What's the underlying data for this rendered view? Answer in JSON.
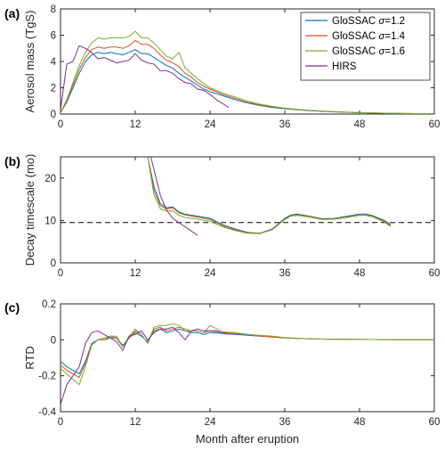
{
  "colors": {
    "axis": "#262626",
    "grid": "none",
    "series": [
      "#0072BD",
      "#D95319",
      "#77AC30",
      "#7E2F8E"
    ],
    "reference_line": "#000000"
  },
  "chart_data": [
    {
      "type": "line",
      "panel_label": "(a)",
      "title": "",
      "xlabel": "",
      "ylabel": "Aerosol mass (TgS)",
      "xlim": [
        0,
        60
      ],
      "ylim": [
        0,
        8
      ],
      "xticks": [
        0,
        12,
        24,
        36,
        48,
        60
      ],
      "yticks": [
        0,
        2,
        4,
        6,
        8
      ],
      "grid": false,
      "legend": {
        "placement": "top-right",
        "entries": [
          {
            "prefix": "GloSSAC ",
            "symbol": "σ",
            "suffix": "=1.2"
          },
          {
            "prefix": "GloSSAC ",
            "symbol": "σ",
            "suffix": "=1.4"
          },
          {
            "prefix": "GloSSAC ",
            "symbol": "σ",
            "suffix": "=1.6"
          },
          {
            "prefix": "HIRS",
            "symbol": "",
            "suffix": ""
          }
        ]
      },
      "series": [
        {
          "name": "GloSSAC σ=1.2",
          "x": [
            0,
            1,
            2,
            3,
            4,
            5,
            6,
            7,
            8,
            9,
            10,
            11,
            12,
            13,
            14,
            15,
            16,
            17,
            18,
            19,
            20,
            21,
            22,
            23,
            24,
            26,
            28,
            30,
            32,
            34,
            36,
            40,
            44,
            48,
            52,
            56,
            60
          ],
          "y": [
            0.1,
            0.9,
            2.0,
            3.1,
            4.0,
            4.5,
            4.7,
            4.6,
            4.7,
            4.6,
            4.5,
            4.7,
            4.9,
            4.6,
            4.6,
            4.3,
            4.0,
            3.7,
            3.5,
            3.1,
            2.8,
            2.5,
            2.2,
            1.9,
            1.7,
            1.4,
            1.1,
            0.85,
            0.65,
            0.5,
            0.4,
            0.25,
            0.16,
            0.1,
            0.06,
            0.03,
            0.02
          ]
        },
        {
          "name": "GloSSAC σ=1.4",
          "x": [
            0,
            1,
            2,
            3,
            4,
            5,
            6,
            7,
            8,
            9,
            10,
            11,
            12,
            13,
            14,
            15,
            16,
            17,
            18,
            19,
            20,
            21,
            22,
            23,
            24,
            26,
            28,
            30,
            32,
            34,
            36,
            40,
            44,
            48,
            52,
            56,
            60
          ],
          "y": [
            0.1,
            1.0,
            2.2,
            3.4,
            4.3,
            4.9,
            5.1,
            5.0,
            5.1,
            5.1,
            5.0,
            5.2,
            5.6,
            5.3,
            5.3,
            5.0,
            4.5,
            4.1,
            3.9,
            3.6,
            3.1,
            2.8,
            2.4,
            2.1,
            1.9,
            1.5,
            1.2,
            0.9,
            0.7,
            0.55,
            0.42,
            0.27,
            0.17,
            0.11,
            0.07,
            0.04,
            0.02
          ]
        },
        {
          "name": "GloSSAC σ=1.6",
          "x": [
            0,
            1,
            2,
            3,
            4,
            5,
            6,
            7,
            8,
            9,
            10,
            11,
            12,
            13,
            14,
            15,
            16,
            17,
            18,
            19,
            20,
            21,
            22,
            23,
            24,
            26,
            28,
            30,
            32,
            34,
            36,
            40,
            44,
            48,
            52,
            56,
            60
          ],
          "y": [
            0.1,
            1.1,
            2.4,
            3.7,
            4.7,
            5.4,
            5.8,
            5.7,
            5.8,
            5.8,
            5.8,
            5.9,
            6.3,
            5.8,
            5.8,
            5.4,
            4.9,
            4.4,
            4.2,
            4.7,
            3.5,
            3.1,
            2.7,
            2.3,
            2.0,
            1.6,
            1.3,
            1.0,
            0.75,
            0.58,
            0.45,
            0.28,
            0.18,
            0.11,
            0.07,
            0.04,
            0.02
          ]
        },
        {
          "name": "HIRS",
          "x": [
            0,
            1,
            2,
            3,
            4,
            5,
            6,
            7,
            8,
            9,
            10,
            11,
            12,
            13,
            14,
            15,
            16,
            17,
            18,
            19,
            20,
            21,
            22,
            23,
            24,
            25,
            26,
            27
          ],
          "y": [
            0.3,
            3.8,
            4.0,
            5.2,
            5.0,
            4.7,
            4.2,
            4.3,
            4.1,
            3.9,
            4.0,
            4.1,
            4.6,
            4.1,
            3.9,
            3.8,
            3.3,
            3.3,
            3.1,
            2.7,
            2.4,
            2.3,
            1.9,
            1.8,
            1.5,
            1.1,
            0.8,
            0.5
          ]
        }
      ]
    },
    {
      "type": "line",
      "panel_label": "(b)",
      "title": "",
      "xlabel": "",
      "ylabel": "Decay timescale (mo)",
      "xlim": [
        0,
        60
      ],
      "ylim": [
        0,
        25
      ],
      "xticks": [
        0,
        12,
        24,
        36,
        48,
        60
      ],
      "yticks": [
        0,
        10,
        20
      ],
      "grid": false,
      "reference_line": {
        "y": 9.5,
        "style": "dashed"
      },
      "series": [
        {
          "name": "GloSSAC σ=1.2",
          "x": [
            14,
            15,
            16,
            17,
            18,
            19,
            20,
            22,
            24,
            26,
            28,
            30,
            32,
            34,
            36,
            37,
            38,
            40,
            42,
            44,
            46,
            48,
            49,
            50,
            52,
            53
          ],
          "y": [
            25,
            18,
            14,
            13,
            13.2,
            12,
            11.5,
            11,
            10.5,
            9,
            8,
            7.2,
            7,
            8,
            10.5,
            11.3,
            11.5,
            11,
            10.4,
            10.5,
            11,
            11.5,
            11.5,
            11.2,
            10,
            9
          ]
        },
        {
          "name": "GloSSAC σ=1.4",
          "x": [
            14,
            15,
            16,
            17,
            18,
            19,
            20,
            22,
            24,
            26,
            28,
            30,
            32,
            34,
            36,
            37,
            38,
            40,
            42,
            44,
            46,
            48,
            49,
            50,
            52,
            53
          ],
          "y": [
            25,
            17,
            13.5,
            12.7,
            13,
            11.8,
            11.3,
            10.8,
            10.2,
            8.8,
            7.8,
            7.1,
            7,
            7.9,
            10.3,
            11.1,
            11.3,
            10.9,
            10.3,
            10.4,
            10.8,
            11.3,
            11.3,
            11,
            9.8,
            8.8
          ]
        },
        {
          "name": "GloSSAC σ=1.6",
          "x": [
            14,
            15,
            16,
            17,
            18,
            19,
            20,
            22,
            24,
            26,
            28,
            30,
            32,
            34,
            36,
            37,
            38,
            40,
            42,
            44,
            46,
            48,
            49,
            50,
            52,
            53
          ],
          "y": [
            25,
            16,
            12.8,
            12.2,
            12.3,
            11.2,
            10.7,
            10.3,
            9.8,
            8.5,
            7.6,
            7.0,
            6.9,
            7.8,
            10.2,
            11,
            11.2,
            10.8,
            10.2,
            10.3,
            10.7,
            11.2,
            11.2,
            10.9,
            9.6,
            8.5
          ]
        },
        {
          "name": "HIRS",
          "x": [
            14.5,
            15,
            16,
            17,
            18,
            19,
            20,
            21,
            22
          ],
          "y": [
            25,
            22,
            16,
            12.5,
            10.5,
            9.5,
            8.5,
            7.5,
            6.5
          ]
        }
      ]
    },
    {
      "type": "line",
      "panel_label": "(c)",
      "title": "",
      "xlabel": "Month after eruption",
      "ylabel": "RTD",
      "xlim": [
        0,
        60
      ],
      "ylim": [
        -0.4,
        0.2
      ],
      "xticks": [
        0,
        12,
        24,
        36,
        48,
        60
      ],
      "yticks": [
        -0.4,
        -0.2,
        0,
        0.2
      ],
      "ytick_labels": [
        "-0.4",
        "-0.2",
        "0",
        "0.2"
      ],
      "grid": false,
      "series": [
        {
          "name": "GloSSAC σ=1.2",
          "x": [
            0,
            1,
            2,
            3,
            4,
            5,
            6,
            7,
            8,
            9,
            10,
            11,
            12,
            13,
            14,
            15,
            16,
            17,
            18,
            19,
            20,
            21,
            22,
            23,
            24,
            26,
            28,
            30,
            32,
            34,
            36,
            40,
            44,
            48,
            52,
            56,
            60
          ],
          "y": [
            -0.12,
            -0.15,
            -0.17,
            -0.19,
            -0.12,
            -0.02,
            0.0,
            0.0,
            0.01,
            0.01,
            -0.03,
            0.01,
            0.04,
            0.02,
            -0.01,
            0.05,
            0.06,
            0.04,
            0.05,
            0.06,
            0.05,
            0.04,
            0.04,
            0.03,
            0.04,
            0.035,
            0.03,
            0.025,
            0.02,
            0.015,
            0.01,
            0.005,
            0.003,
            0.002,
            0.001,
            0.0,
            0.0
          ]
        },
        {
          "name": "GloSSAC σ=1.4",
          "x": [
            0,
            1,
            2,
            3,
            4,
            5,
            6,
            7,
            8,
            9,
            10,
            11,
            12,
            13,
            14,
            15,
            16,
            17,
            18,
            19,
            20,
            21,
            22,
            23,
            24,
            26,
            28,
            30,
            32,
            34,
            36,
            40,
            44,
            48,
            52,
            56,
            60
          ],
          "y": [
            -0.14,
            -0.17,
            -0.19,
            -0.21,
            -0.13,
            -0.03,
            0.0,
            0.0,
            0.02,
            0.01,
            -0.04,
            0.01,
            0.05,
            0.03,
            -0.02,
            0.06,
            0.07,
            0.05,
            0.06,
            0.07,
            0.06,
            0.05,
            0.05,
            0.04,
            0.05,
            0.04,
            0.035,
            0.03,
            0.02,
            0.015,
            0.01,
            0.005,
            0.003,
            0.002,
            0.001,
            0.0,
            0.0
          ]
        },
        {
          "name": "GloSSAC σ=1.6",
          "x": [
            0,
            1,
            2,
            3,
            4,
            5,
            6,
            7,
            8,
            9,
            10,
            11,
            12,
            13,
            14,
            15,
            16,
            17,
            18,
            19,
            20,
            21,
            22,
            23,
            24,
            26,
            28,
            30,
            32,
            34,
            36,
            40,
            44,
            48,
            52,
            56,
            60
          ],
          "y": [
            -0.16,
            -0.19,
            -0.22,
            -0.25,
            -0.15,
            -0.03,
            0.0,
            0.01,
            0.02,
            0.02,
            -0.04,
            0.02,
            0.06,
            0.03,
            -0.02,
            0.07,
            0.08,
            0.08,
            0.09,
            0.08,
            0.05,
            0.05,
            0.05,
            0.04,
            0.08,
            0.045,
            0.04,
            0.03,
            0.025,
            0.02,
            0.012,
            0.006,
            0.003,
            0.002,
            0.001,
            0.0,
            0.0
          ]
        },
        {
          "name": "HIRS",
          "x": [
            0,
            1,
            2,
            3,
            4,
            5,
            6,
            7,
            8,
            9,
            10,
            11,
            12,
            13,
            14,
            15,
            16,
            17,
            18,
            19,
            20,
            21,
            22,
            23,
            24,
            25,
            26,
            27
          ],
          "y": [
            -0.36,
            -0.25,
            -0.2,
            -0.15,
            -0.02,
            0.04,
            0.05,
            0.03,
            0.01,
            -0.01,
            -0.06,
            0.02,
            0.03,
            0.05,
            0.0,
            0.04,
            0.06,
            0.06,
            0.07,
            0.04,
            0.0,
            0.05,
            0.06,
            0.05,
            0.05,
            0.05,
            0.04,
            0.03
          ]
        }
      ]
    }
  ]
}
